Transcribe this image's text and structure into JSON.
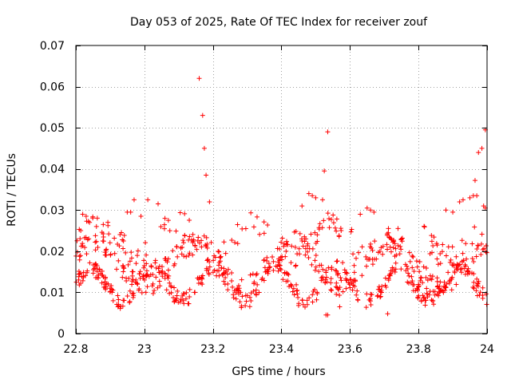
{
  "chart_data": {
    "type": "scatter",
    "title": "Day 053 of 2025, Rate Of TEC Index for receiver zouf",
    "xlabel": "GPS time / hours",
    "ylabel": "ROTI / TECUs",
    "xlim": [
      22.8,
      24.0
    ],
    "ylim": [
      0.0,
      0.07
    ],
    "grid": true,
    "marker": "+",
    "marker_color": "#ff0000",
    "xticks": [
      22.8,
      23.0,
      23.2,
      23.4,
      23.6,
      23.8,
      24.0
    ],
    "xtick_labels": [
      "22.8",
      "23",
      "23.2",
      "23.4",
      "23.6",
      "23.8",
      "24"
    ],
    "yticks": [
      0.0,
      0.01,
      0.02,
      0.03,
      0.04,
      0.05,
      0.06,
      0.07
    ],
    "ytick_labels": [
      "0",
      "0.01",
      "0.02",
      "0.03",
      "0.04",
      "0.05",
      "0.06",
      "0.07"
    ],
    "series": [
      {
        "name": "ROTI",
        "points": [
          [
            23.16,
            0.062
          ],
          [
            23.17,
            0.053
          ],
          [
            23.175,
            0.045
          ],
          [
            23.18,
            0.0385
          ],
          [
            23.19,
            0.032
          ],
          [
            23.535,
            0.049
          ],
          [
            23.525,
            0.0395
          ],
          [
            23.995,
            0.0495
          ],
          [
            23.985,
            0.045
          ],
          [
            23.975,
            0.044
          ],
          [
            23.965,
            0.0372
          ],
          [
            22.81,
            0.0253
          ],
          [
            22.82,
            0.029
          ],
          [
            22.83,
            0.0285
          ],
          [
            22.84,
            0.027
          ],
          [
            22.86,
            0.026
          ],
          [
            22.88,
            0.0265
          ],
          [
            22.95,
            0.0295
          ],
          [
            22.96,
            0.0295
          ],
          [
            22.97,
            0.0325
          ],
          [
            22.99,
            0.0285
          ],
          [
            23.01,
            0.0325
          ],
          [
            23.04,
            0.0315
          ],
          [
            23.06,
            0.028
          ],
          [
            23.07,
            0.0275
          ],
          [
            23.48,
            0.034
          ],
          [
            23.49,
            0.0335
          ],
          [
            23.5,
            0.033
          ],
          [
            23.52,
            0.0325
          ],
          [
            23.46,
            0.031
          ],
          [
            23.65,
            0.0305
          ],
          [
            23.66,
            0.03
          ],
          [
            23.67,
            0.0295
          ],
          [
            23.63,
            0.029
          ],
          [
            23.88,
            0.03
          ],
          [
            23.9,
            0.0295
          ],
          [
            23.92,
            0.032
          ],
          [
            23.93,
            0.0325
          ],
          [
            23.95,
            0.033
          ],
          [
            23.96,
            0.0335
          ],
          [
            23.97,
            0.0335
          ],
          [
            23.99,
            0.031
          ],
          [
            23.995,
            0.0305
          ],
          [
            23.53,
            0.0045
          ],
          [
            23.535,
            0.0045
          ],
          [
            23.71,
            0.0048
          ],
          [
            23.45,
            0.0068
          ],
          [
            23.57,
            0.0065
          ]
        ]
      }
    ]
  }
}
